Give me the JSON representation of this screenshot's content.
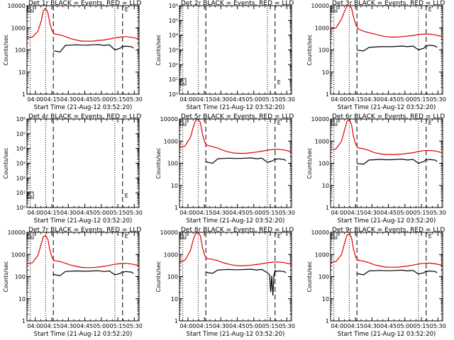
{
  "colors": {
    "events": "#000000",
    "lld": "#e00000",
    "axis": "#000000",
    "background": "#ffffff"
  },
  "common": {
    "ylabel": "Counts/sec",
    "xlabel": "Start Time (21-Aug-12 03:52:20)",
    "xticks": [
      "04:00",
      "04:15",
      "04:30",
      "04:45",
      "05:00",
      "05:15",
      "05:30"
    ],
    "xtick_minutes": [
      7.67,
      22.67,
      37.67,
      52.67,
      67.67,
      82.67,
      97.67
    ],
    "xlim_minutes": [
      0,
      102
    ],
    "markers": {
      "dotted_minutes": [
        3,
        17,
        80,
        101
      ],
      "dashed_minutes": [
        24,
        87
      ],
      "box_label_left": "S",
      "box_label_right": "E"
    }
  },
  "chart_data": [
    {
      "type": "line",
      "title": "Det 1r BLACK = Events, RED = LLD",
      "ylim": [
        1,
        10000
      ],
      "yticks": [
        "1",
        "10",
        "100",
        "1000",
        "10000"
      ],
      "yscale": 1,
      "has_data": true,
      "series": [
        {
          "name": "Events",
          "x": [
            24,
            26,
            30,
            35,
            40,
            45,
            50,
            55,
            60,
            65,
            70,
            75,
            80,
            85,
            87,
            88,
            90,
            92,
            95,
            97
          ],
          "values": [
            90,
            88,
            80,
            160,
            165,
            170,
            165,
            165,
            170,
            175,
            160,
            170,
            100,
            120,
            150,
            140,
            150,
            145,
            140,
            120
          ]
        },
        {
          "name": "LLD",
          "x": [
            0,
            5,
            10,
            13,
            15,
            17,
            19,
            21,
            23,
            25,
            30,
            35,
            40,
            45,
            50,
            55,
            60,
            65,
            70,
            75,
            80,
            85,
            90,
            95,
            100,
            102
          ],
          "values": [
            350,
            380,
            700,
            2000,
            6000,
            7500,
            5000,
            1500,
            700,
            520,
            480,
            400,
            320,
            280,
            250,
            250,
            250,
            270,
            280,
            310,
            350,
            380,
            400,
            370,
            330,
            300
          ]
        }
      ]
    },
    {
      "type": "line",
      "title": "Det 2r BLACK = Events, RED = LLD",
      "ylim": [
        1,
        1000000
      ],
      "yticks": [
        "10⁰",
        "10¹",
        "10²",
        "10³",
        "10⁴",
        "10⁵",
        "10⁶"
      ],
      "yscale": 2,
      "has_data": false,
      "series": []
    },
    {
      "type": "line",
      "title": "Det 3r BLACK = Events, RED = LLD",
      "ylim": [
        1,
        10000
      ],
      "yticks": [
        "1",
        "10",
        "100",
        "1000",
        "10000"
      ],
      "yscale": 1,
      "has_data": true,
      "series": [
        {
          "name": "Events",
          "x": [
            24,
            26,
            30,
            35,
            40,
            45,
            50,
            55,
            60,
            65,
            70,
            75,
            80,
            85,
            87,
            88,
            90,
            92,
            95,
            97
          ],
          "values": [
            100,
            95,
            90,
            130,
            135,
            140,
            140,
            140,
            145,
            150,
            140,
            150,
            100,
            120,
            160,
            150,
            165,
            160,
            150,
            130
          ]
        },
        {
          "name": "LLD",
          "x": [
            0,
            5,
            10,
            13,
            15,
            17,
            19,
            21,
            23,
            25,
            30,
            35,
            40,
            45,
            50,
            55,
            60,
            65,
            70,
            75,
            80,
            85,
            90,
            95,
            100,
            102
          ],
          "values": [
            900,
            1000,
            2500,
            6000,
            9500,
            9800,
            8000,
            3000,
            1400,
            900,
            700,
            600,
            520,
            450,
            400,
            380,
            380,
            400,
            420,
            450,
            500,
            520,
            520,
            480,
            420,
            380
          ]
        }
      ]
    },
    {
      "type": "line",
      "title": "Det 4r BLACK = Events, RED = LLD",
      "ylim": [
        1,
        1000000
      ],
      "yticks": [
        "10⁰",
        "10¹",
        "10²",
        "10³",
        "10⁴",
        "10⁵",
        "10⁶"
      ],
      "yscale": 2,
      "has_data": false,
      "series": []
    },
    {
      "type": "line",
      "title": "Det 5r BLACK = Events, RED = LLD",
      "ylim": [
        1,
        10000
      ],
      "yticks": [
        "1",
        "10",
        "100",
        "1000",
        "10000"
      ],
      "yscale": 1,
      "has_data": true,
      "series": [
        {
          "name": "Events",
          "x": [
            24,
            26,
            30,
            35,
            40,
            45,
            50,
            55,
            60,
            65,
            70,
            75,
            80,
            85,
            87,
            88,
            90,
            92,
            95,
            97
          ],
          "values": [
            120,
            110,
            100,
            160,
            165,
            170,
            165,
            165,
            170,
            175,
            160,
            170,
            110,
            130,
            160,
            150,
            160,
            155,
            150,
            130
          ]
        },
        {
          "name": "LLD",
          "x": [
            0,
            5,
            10,
            13,
            15,
            17,
            19,
            21,
            23,
            25,
            30,
            35,
            40,
            45,
            50,
            55,
            60,
            65,
            70,
            75,
            80,
            85,
            90,
            95,
            100,
            102
          ],
          "values": [
            500,
            600,
            1500,
            5000,
            9000,
            9500,
            7000,
            2000,
            900,
            650,
            560,
            480,
            380,
            320,
            290,
            280,
            280,
            300,
            320,
            350,
            390,
            420,
            430,
            400,
            350,
            320
          ]
        }
      ]
    },
    {
      "type": "line",
      "title": "Det 6r BLACK = Events, RED = LLD",
      "ylim": [
        1,
        10000
      ],
      "yticks": [
        "1",
        "10",
        "100",
        "1000",
        "10000"
      ],
      "yscale": 1,
      "has_data": true,
      "series": [
        {
          "name": "Events",
          "x": [
            24,
            26,
            30,
            35,
            40,
            45,
            50,
            55,
            60,
            65,
            70,
            75,
            80,
            85,
            87,
            88,
            90,
            92,
            95,
            97
          ],
          "values": [
            100,
            95,
            90,
            140,
            145,
            150,
            145,
            145,
            150,
            155,
            140,
            150,
            100,
            120,
            150,
            140,
            150,
            145,
            140,
            120
          ]
        },
        {
          "name": "LLD",
          "x": [
            0,
            5,
            10,
            13,
            15,
            17,
            19,
            21,
            23,
            25,
            30,
            35,
            40,
            45,
            50,
            55,
            60,
            65,
            70,
            75,
            80,
            85,
            90,
            95,
            100,
            102
          ],
          "values": [
            400,
            450,
            1000,
            3500,
            8000,
            9000,
            6000,
            1500,
            700,
            500,
            450,
            380,
            300,
            270,
            250,
            250,
            250,
            260,
            280,
            300,
            340,
            370,
            380,
            360,
            310,
            280
          ]
        }
      ]
    },
    {
      "type": "line",
      "title": "Det 7r BLACK = Events, RED = LLD",
      "ylim": [
        1,
        10000
      ],
      "yticks": [
        "1",
        "10",
        "100",
        "1000",
        "10000"
      ],
      "yscale": 1,
      "has_data": true,
      "series": [
        {
          "name": "Events",
          "x": [
            24,
            26,
            30,
            35,
            40,
            45,
            50,
            55,
            60,
            65,
            70,
            75,
            80,
            85,
            87,
            88,
            90,
            92,
            95,
            97
          ],
          "values": [
            130,
            120,
            110,
            170,
            175,
            180,
            175,
            175,
            180,
            185,
            170,
            180,
            120,
            140,
            170,
            160,
            170,
            165,
            160,
            140
          ]
        },
        {
          "name": "LLD",
          "x": [
            0,
            5,
            10,
            13,
            15,
            17,
            19,
            21,
            23,
            25,
            30,
            35,
            40,
            45,
            50,
            55,
            60,
            65,
            70,
            75,
            80,
            85,
            90,
            95,
            100,
            102
          ],
          "values": [
            380,
            420,
            900,
            3000,
            6500,
            7000,
            5000,
            1500,
            700,
            520,
            480,
            400,
            330,
            290,
            260,
            255,
            255,
            270,
            290,
            320,
            360,
            390,
            400,
            370,
            330,
            300
          ]
        }
      ]
    },
    {
      "type": "line",
      "title": "Det 8r BLACK = Events, RED = LLD",
      "ylim": [
        1,
        10000
      ],
      "yticks": [
        "1",
        "10",
        "100",
        "1000",
        "10000"
      ],
      "yscale": 1,
      "has_data": true,
      "series": [
        {
          "name": "Events",
          "x": [
            24,
            26,
            30,
            35,
            40,
            45,
            50,
            55,
            60,
            65,
            70,
            75,
            80,
            82,
            83,
            84,
            85,
            86,
            87,
            88,
            90,
            92,
            95,
            97
          ],
          "values": [
            160,
            150,
            140,
            200,
            205,
            210,
            205,
            205,
            210,
            215,
            200,
            210,
            150,
            120,
            20,
            110,
            14,
            120,
            190,
            170,
            180,
            175,
            170,
            150
          ]
        },
        {
          "name": "LLD",
          "x": [
            0,
            5,
            10,
            13,
            15,
            17,
            19,
            21,
            23,
            25,
            30,
            35,
            40,
            45,
            50,
            55,
            60,
            65,
            70,
            75,
            80,
            85,
            90,
            95,
            100,
            102
          ],
          "values": [
            450,
            550,
            1500,
            5500,
            9000,
            9500,
            7000,
            2000,
            900,
            650,
            600,
            520,
            420,
            360,
            320,
            310,
            310,
            330,
            350,
            380,
            420,
            450,
            460,
            430,
            380,
            350
          ]
        }
      ]
    },
    {
      "type": "line",
      "title": "Det 9r BLACK = Events, RED = LLD",
      "ylim": [
        1,
        10000
      ],
      "yticks": [
        "1",
        "10",
        "100",
        "1000",
        "10000"
      ],
      "yscale": 1,
      "has_data": true,
      "series": [
        {
          "name": "Events",
          "x": [
            24,
            26,
            30,
            35,
            40,
            45,
            50,
            55,
            60,
            65,
            70,
            75,
            80,
            85,
            87,
            88,
            90,
            92,
            95,
            97
          ],
          "values": [
            140,
            130,
            120,
            180,
            185,
            190,
            185,
            185,
            190,
            195,
            180,
            190,
            130,
            150,
            180,
            170,
            180,
            175,
            170,
            150
          ]
        },
        {
          "name": "LLD",
          "x": [
            0,
            5,
            10,
            13,
            15,
            17,
            19,
            21,
            23,
            25,
            30,
            35,
            40,
            45,
            50,
            55,
            60,
            65,
            70,
            75,
            80,
            85,
            90,
            95,
            100,
            102
          ],
          "values": [
            420,
            480,
            1000,
            3500,
            7500,
            8500,
            6000,
            1600,
            750,
            550,
            500,
            420,
            340,
            300,
            270,
            265,
            265,
            280,
            300,
            330,
            370,
            400,
            410,
            380,
            340,
            310
          ]
        }
      ]
    }
  ]
}
